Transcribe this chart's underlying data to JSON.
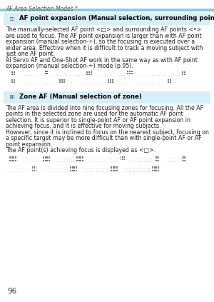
{
  "bg_color": "#ffffff",
  "header_text": "AF Area Selection Modes *",
  "header_color": "#555555",
  "cyan_bar_color": "#7ecfea",
  "section1_title": "AF point expansion (Manual selection, surrounding points)",
  "section1_bg": "#d6eff8",
  "section1_body1": "The manually-selected AF point <□> and surrounding AF points <•>",
  "section1_body2": "are used to focus. The AF point expansion is larger than with AF point",
  "section1_body3": "expansion (manual selection-÷), so the focusing is executed over a",
  "section1_body4": "wider area. Effective when it is difficult to track a moving subject with",
  "section1_body5": "just one AF point.",
  "section1_body6": "AI Servo AF and One-Shot AF work in the same way as with AF point",
  "section1_body7": "expansion (manual selection-÷) mode (p.95).",
  "section2_title": "Zone AF (Manual selection of zone)",
  "section2_bg": "#d6eff8",
  "section2_body1": "The AF area is divided into nine focusing zones for focusing. All the AF",
  "section2_body2": "points in the selected zone are used for the automatic AF point",
  "section2_body3": "selection. It is superior to single-point AF or AF point expansion in",
  "section2_body4": "achieving focus, and it is effective for moving subjects.",
  "section2_body5": "However, since it is inclined to focus on the nearest subject, focusing on",
  "section2_body6": "a specific target may be more difficult than with single-point AF or AF",
  "section2_body7": "point expansion.",
  "section2_body8": "The AF point(s) achieving focus is displayed as <□>.",
  "page_number": "96",
  "gray": "#777777",
  "light_gray": "#cccccc"
}
